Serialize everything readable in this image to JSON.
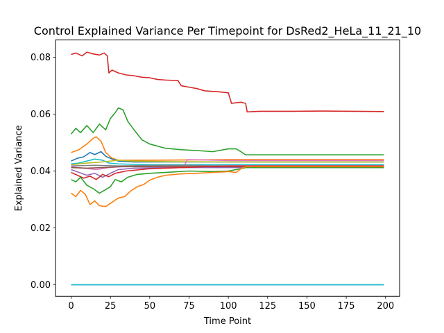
{
  "chart_data": {
    "type": "line",
    "title": "Control Explained Variance Per Timepoint for DsRed2_HeLa_11_21_10",
    "xlabel": "Time Point",
    "ylabel": "Explained Variance",
    "xlim": [
      -9.95,
      208.95
    ],
    "ylim": [
      -0.0041,
      0.0861
    ],
    "xticks": [
      0,
      25,
      50,
      75,
      100,
      125,
      150,
      175,
      200
    ],
    "yticks": [
      0.0,
      0.02,
      0.04,
      0.06,
      0.08
    ],
    "xtick_labels": [
      "0",
      "25",
      "50",
      "75",
      "100",
      "125",
      "150",
      "175",
      "200"
    ],
    "ytick_labels": [
      "0.00",
      "0.02",
      "0.04",
      "0.06",
      "0.08"
    ],
    "grid": false,
    "legend": null,
    "series": [
      {
        "color": "#d62728",
        "keypoints": [
          [
            0,
            0.081
          ],
          [
            3,
            0.0815
          ],
          [
            7,
            0.0805
          ],
          [
            10,
            0.0818
          ],
          [
            14,
            0.0812
          ],
          [
            18,
            0.0808
          ],
          [
            21,
            0.0815
          ],
          [
            23,
            0.0805
          ],
          [
            24,
            0.0745
          ],
          [
            26,
            0.0755
          ],
          [
            30,
            0.0745
          ],
          [
            35,
            0.0738
          ],
          [
            40,
            0.0735
          ],
          [
            45,
            0.073
          ],
          [
            50,
            0.0728
          ],
          [
            55,
            0.0722
          ],
          [
            60,
            0.072
          ],
          [
            68,
            0.0718
          ],
          [
            70,
            0.07
          ],
          [
            75,
            0.0695
          ],
          [
            80,
            0.069
          ],
          [
            85,
            0.0682
          ],
          [
            95,
            0.0678
          ],
          [
            100,
            0.0675
          ],
          [
            102,
            0.0638
          ],
          [
            108,
            0.0642
          ],
          [
            111,
            0.0638
          ],
          [
            112,
            0.0608
          ],
          [
            120,
            0.061
          ],
          [
            140,
            0.061
          ],
          [
            160,
            0.0611
          ],
          [
            180,
            0.061
          ],
          [
            199,
            0.0609
          ]
        ]
      },
      {
        "color": "#2ca02c",
        "keypoints": [
          [
            0,
            0.053
          ],
          [
            3,
            0.055
          ],
          [
            6,
            0.0535
          ],
          [
            10,
            0.056
          ],
          [
            14,
            0.0535
          ],
          [
            18,
            0.0565
          ],
          [
            22,
            0.0545
          ],
          [
            25,
            0.0585
          ],
          [
            28,
            0.0605
          ],
          [
            30,
            0.0622
          ],
          [
            33,
            0.0615
          ],
          [
            36,
            0.0575
          ],
          [
            40,
            0.0545
          ],
          [
            45,
            0.051
          ],
          [
            50,
            0.0495
          ],
          [
            60,
            0.048
          ],
          [
            70,
            0.0475
          ],
          [
            80,
            0.0472
          ],
          [
            90,
            0.0468
          ],
          [
            100,
            0.0478
          ],
          [
            105,
            0.0478
          ],
          [
            108,
            0.0468
          ],
          [
            111,
            0.0457
          ],
          [
            199,
            0.0457
          ]
        ]
      },
      {
        "color": "#ff7f0e",
        "keypoints": [
          [
            0,
            0.0465
          ],
          [
            5,
            0.0475
          ],
          [
            10,
            0.0495
          ],
          [
            14,
            0.0515
          ],
          [
            16,
            0.052
          ],
          [
            19,
            0.0505
          ],
          [
            22,
            0.0465
          ],
          [
            26,
            0.0445
          ],
          [
            30,
            0.0438
          ],
          [
            50,
            0.0438
          ],
          [
            100,
            0.044
          ],
          [
            199,
            0.044
          ]
        ]
      },
      {
        "color": "#1f77b4",
        "keypoints": [
          [
            0,
            0.0435
          ],
          [
            4,
            0.0445
          ],
          [
            8,
            0.045
          ],
          [
            12,
            0.0465
          ],
          [
            15,
            0.0458
          ],
          [
            19,
            0.0468
          ],
          [
            22,
            0.0452
          ],
          [
            26,
            0.0442
          ],
          [
            30,
            0.0435
          ],
          [
            40,
            0.0432
          ],
          [
            60,
            0.0432
          ],
          [
            100,
            0.0432
          ],
          [
            199,
            0.0432
          ]
        ]
      },
      {
        "color": "#17becf",
        "keypoints": [
          [
            0,
            0.0425
          ],
          [
            5,
            0.0428
          ],
          [
            10,
            0.0435
          ],
          [
            15,
            0.0442
          ],
          [
            20,
            0.0438
          ],
          [
            24,
            0.0428
          ],
          [
            30,
            0.0425
          ],
          [
            50,
            0.0422
          ],
          [
            100,
            0.0422
          ],
          [
            199,
            0.0422
          ]
        ]
      },
      {
        "color": "#bcbd22",
        "keypoints": [
          [
            0,
            0.0422
          ],
          [
            10,
            0.0428
          ],
          [
            20,
            0.0432
          ],
          [
            30,
            0.0438
          ],
          [
            40,
            0.0435
          ],
          [
            60,
            0.0433
          ],
          [
            100,
            0.0432
          ],
          [
            199,
            0.0432
          ]
        ]
      },
      {
        "color": "#9467bd",
        "keypoints": [
          [
            0,
            0.0405
          ],
          [
            5,
            0.0395
          ],
          [
            10,
            0.0385
          ],
          [
            15,
            0.0392
          ],
          [
            20,
            0.0378
          ],
          [
            25,
            0.0392
          ],
          [
            30,
            0.0405
          ],
          [
            40,
            0.041
          ],
          [
            60,
            0.0412
          ],
          [
            100,
            0.0412
          ],
          [
            199,
            0.0412
          ]
        ]
      },
      {
        "color": "#e377c2",
        "keypoints": [
          [
            0,
            0.0415
          ],
          [
            8,
            0.041
          ],
          [
            16,
            0.0405
          ],
          [
            24,
            0.0412
          ],
          [
            32,
            0.0415
          ],
          [
            50,
            0.0418
          ],
          [
            65,
            0.0418
          ],
          [
            72,
            0.042
          ],
          [
            74,
            0.044
          ],
          [
            100,
            0.0437
          ],
          [
            199,
            0.0437
          ]
        ]
      },
      {
        "color": "#8c564b",
        "keypoints": [
          [
            0,
            0.0412
          ],
          [
            10,
            0.041
          ],
          [
            20,
            0.0412
          ],
          [
            30,
            0.0415
          ],
          [
            50,
            0.0415
          ],
          [
            100,
            0.0415
          ],
          [
            199,
            0.0415
          ]
        ]
      },
      {
        "color": "#7f7f7f",
        "keypoints": [
          [
            0,
            0.0418
          ],
          [
            15,
            0.042
          ],
          [
            30,
            0.0418
          ],
          [
            60,
            0.042
          ],
          [
            100,
            0.0418
          ],
          [
            199,
            0.0418
          ]
        ]
      },
      {
        "color": "#d62728",
        "keypoints": [
          [
            0,
            0.0395
          ],
          [
            4,
            0.0385
          ],
          [
            8,
            0.0375
          ],
          [
            12,
            0.0382
          ],
          [
            16,
            0.037
          ],
          [
            20,
            0.0388
          ],
          [
            24,
            0.038
          ],
          [
            28,
            0.0392
          ],
          [
            35,
            0.04
          ],
          [
            50,
            0.0408
          ],
          [
            70,
            0.0412
          ],
          [
            100,
            0.0418
          ],
          [
            199,
            0.0418
          ]
        ]
      },
      {
        "color": "#2ca02c",
        "keypoints": [
          [
            0,
            0.037
          ],
          [
            3,
            0.0362
          ],
          [
            6,
            0.0378
          ],
          [
            10,
            0.035
          ],
          [
            14,
            0.0338
          ],
          [
            18,
            0.0322
          ],
          [
            22,
            0.0335
          ],
          [
            25,
            0.0345
          ],
          [
            28,
            0.037
          ],
          [
            32,
            0.0362
          ],
          [
            36,
            0.0378
          ],
          [
            42,
            0.0388
          ],
          [
            50,
            0.0392
          ],
          [
            60,
            0.0395
          ],
          [
            75,
            0.04
          ],
          [
            90,
            0.0398
          ],
          [
            100,
            0.04
          ],
          [
            108,
            0.0408
          ],
          [
            111,
            0.0412
          ],
          [
            199,
            0.0412
          ]
        ]
      },
      {
        "color": "#ff7f0e",
        "keypoints": [
          [
            0,
            0.0322
          ],
          [
            3,
            0.031
          ],
          [
            6,
            0.0332
          ],
          [
            9,
            0.0318
          ],
          [
            12,
            0.0282
          ],
          [
            15,
            0.0295
          ],
          [
            18,
            0.0278
          ],
          [
            22,
            0.0275
          ],
          [
            26,
            0.029
          ],
          [
            30,
            0.0305
          ],
          [
            34,
            0.031
          ],
          [
            38,
            0.033
          ],
          [
            42,
            0.0345
          ],
          [
            46,
            0.0352
          ],
          [
            50,
            0.0368
          ],
          [
            55,
            0.0378
          ],
          [
            60,
            0.0385
          ],
          [
            70,
            0.039
          ],
          [
            80,
            0.0392
          ],
          [
            90,
            0.0395
          ],
          [
            100,
            0.0398
          ],
          [
            105,
            0.0395
          ],
          [
            108,
            0.0408
          ],
          [
            111,
            0.0415
          ],
          [
            199,
            0.0415
          ]
        ]
      },
      {
        "color": "#1f77b4",
        "keypoints": [
          [
            0,
            0.0
          ],
          [
            199,
            0.0
          ]
        ]
      },
      {
        "color": "#17becf",
        "keypoints": [
          [
            0,
            0.0
          ],
          [
            199,
            0.0
          ]
        ]
      }
    ]
  }
}
